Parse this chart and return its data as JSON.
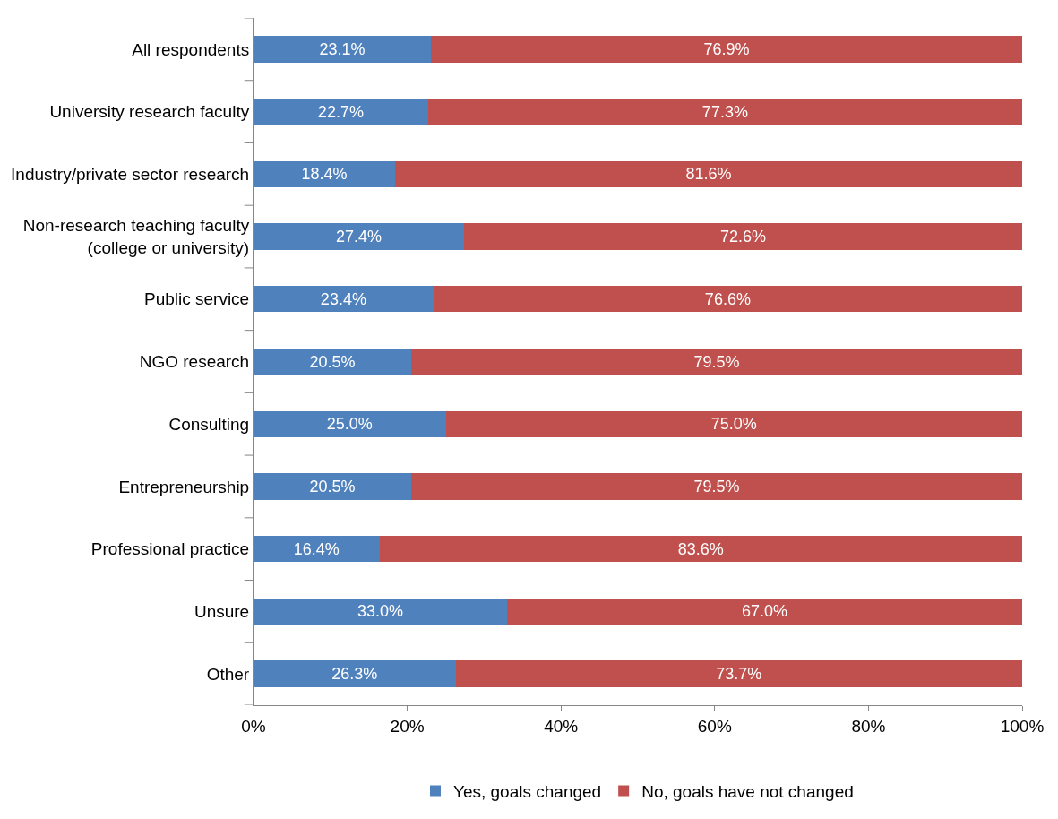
{
  "chart_data": {
    "type": "bar",
    "orientation": "horizontal",
    "stacked": true,
    "categories": [
      "All respondents",
      "University research faculty",
      "Industry/private sector research",
      "Non-research teaching faculty\n(college or university)",
      "Public service",
      "NGO research",
      "Consulting",
      "Entrepreneurship",
      "Professional practice",
      "Unsure",
      "Other"
    ],
    "series": [
      {
        "name": "Yes, goals changed",
        "color": "#4f81bd",
        "values": [
          23.1,
          22.7,
          18.4,
          27.4,
          23.4,
          20.5,
          25.0,
          20.5,
          16.4,
          33.0,
          26.3
        ],
        "value_labels": [
          "23.1%",
          "22.7%",
          "18.4%",
          "27.4%",
          "23.4%",
          "20.5%",
          "25.0%",
          "20.5%",
          "16.4%",
          "33.0%",
          "26.3%"
        ]
      },
      {
        "name": "No, goals have not changed",
        "color": "#c0504d",
        "values": [
          76.9,
          77.3,
          81.6,
          72.6,
          76.6,
          79.5,
          75.0,
          79.5,
          83.6,
          67.0,
          73.7
        ],
        "value_labels": [
          "76.9%",
          "77.3%",
          "81.6%",
          "72.6%",
          "76.6%",
          "79.5%",
          "75.0%",
          "79.5%",
          "83.6%",
          "67.0%",
          "73.7%"
        ]
      }
    ],
    "xlim": [
      0,
      100
    ],
    "xticks": [
      {
        "value": 0,
        "label": "0%"
      },
      {
        "value": 20,
        "label": "20%"
      },
      {
        "value": 40,
        "label": "40%"
      },
      {
        "value": 60,
        "label": "60%"
      },
      {
        "value": 80,
        "label": "80%"
      },
      {
        "value": 100,
        "label": "100%"
      }
    ],
    "legend": "bottom"
  }
}
